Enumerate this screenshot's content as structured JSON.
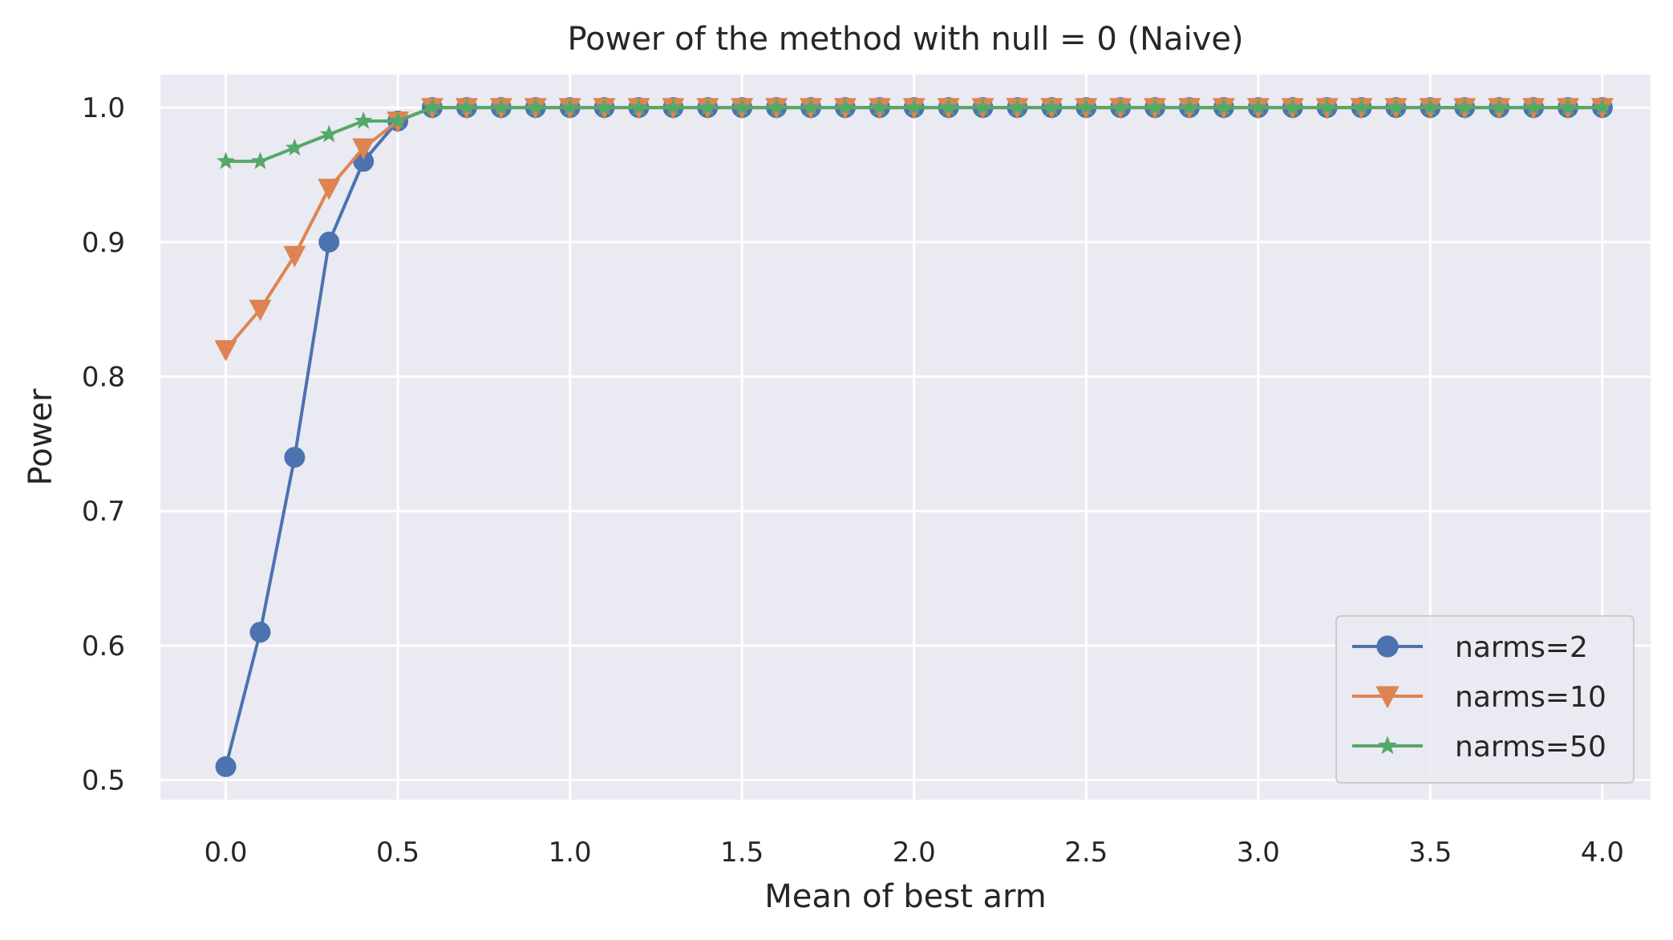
{
  "chart_data": {
    "type": "line",
    "title": "Power of the method with null = 0 (Naive)",
    "xlabel": "Mean of best arm",
    "ylabel": "Power",
    "xlim": [
      -0.19,
      4.14
    ],
    "ylim": [
      0.4855,
      1.0245
    ],
    "xticks": [
      0.0,
      0.5,
      1.0,
      1.5,
      2.0,
      2.5,
      3.0,
      3.5,
      4.0
    ],
    "xtick_labels": [
      "0.0",
      "0.5",
      "1.0",
      "1.5",
      "2.0",
      "2.5",
      "3.0",
      "3.5",
      "4.0"
    ],
    "yticks": [
      0.5,
      0.6,
      0.7,
      0.8,
      0.9,
      1.0
    ],
    "ytick_labels": [
      "0.5",
      "0.6",
      "0.7",
      "0.8",
      "0.9",
      "1.0"
    ],
    "grid": true,
    "background": "#EAEAF2",
    "legend_position": "lower-right",
    "x": [
      0.0,
      0.1,
      0.2,
      0.3,
      0.4,
      0.5,
      0.6,
      0.7,
      0.8,
      0.9,
      1.0,
      1.1,
      1.2,
      1.3,
      1.4,
      1.5,
      1.6,
      1.7,
      1.8,
      1.9,
      2.0,
      2.1,
      2.2,
      2.3,
      2.4,
      2.5,
      2.6,
      2.7,
      2.8,
      2.9,
      3.0,
      3.1,
      3.2,
      3.3,
      3.4,
      3.5,
      3.6,
      3.7,
      3.8,
      3.9,
      4.0
    ],
    "series": [
      {
        "name": "narms=2",
        "color": "#4C72B0",
        "marker": "circle",
        "values": [
          0.51,
          0.61,
          0.74,
          0.9,
          0.96,
          0.99,
          1.0,
          1.0,
          1.0,
          1.0,
          1.0,
          1.0,
          1.0,
          1.0,
          1.0,
          1.0,
          1.0,
          1.0,
          1.0,
          1.0,
          1.0,
          1.0,
          1.0,
          1.0,
          1.0,
          1.0,
          1.0,
          1.0,
          1.0,
          1.0,
          1.0,
          1.0,
          1.0,
          1.0,
          1.0,
          1.0,
          1.0,
          1.0,
          1.0,
          1.0,
          1.0
        ]
      },
      {
        "name": "narms=10",
        "color": "#DD8452",
        "marker": "triangle-down",
        "values": [
          0.82,
          0.85,
          0.89,
          0.94,
          0.97,
          0.99,
          1.0,
          1.0,
          1.0,
          1.0,
          1.0,
          1.0,
          1.0,
          1.0,
          1.0,
          1.0,
          1.0,
          1.0,
          1.0,
          1.0,
          1.0,
          1.0,
          1.0,
          1.0,
          1.0,
          1.0,
          1.0,
          1.0,
          1.0,
          1.0,
          1.0,
          1.0,
          1.0,
          1.0,
          1.0,
          1.0,
          1.0,
          1.0,
          1.0,
          1.0,
          1.0
        ]
      },
      {
        "name": "narms=50",
        "color": "#55A868",
        "marker": "star",
        "values": [
          0.96,
          0.96,
          0.97,
          0.98,
          0.99,
          0.99,
          1.0,
          1.0,
          1.0,
          1.0,
          1.0,
          1.0,
          1.0,
          1.0,
          1.0,
          1.0,
          1.0,
          1.0,
          1.0,
          1.0,
          1.0,
          1.0,
          1.0,
          1.0,
          1.0,
          1.0,
          1.0,
          1.0,
          1.0,
          1.0,
          1.0,
          1.0,
          1.0,
          1.0,
          1.0,
          1.0,
          1.0,
          1.0,
          1.0,
          1.0,
          1.0
        ]
      }
    ]
  }
}
